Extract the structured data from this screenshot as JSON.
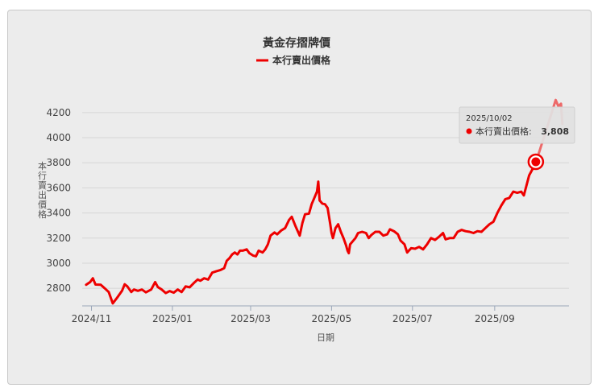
{
  "chart_data": {
    "type": "line",
    "title": "黃金存摺牌價",
    "legend": [
      "本行賣出價格"
    ],
    "xlabel": "日期",
    "ylabel": "本行賣出價格",
    "legend_position": "top-center",
    "grid": true,
    "ylim": [
      2660,
      4340
    ],
    "yticks": [
      2800,
      3000,
      3200,
      3400,
      3600,
      3800,
      4000,
      4200
    ],
    "xlim": [
      "2024-10-25",
      "2025-10-27"
    ],
    "xticks": [
      {
        "date": "2024-11-01",
        "label": "2024/11"
      },
      {
        "date": "2025-01-01",
        "label": "2025/01"
      },
      {
        "date": "2025-03-01",
        "label": "2025/03"
      },
      {
        "date": "2025-05-01",
        "label": "2025/05"
      },
      {
        "date": "2025-07-01",
        "label": "2025/07"
      },
      {
        "date": "2025-09-01",
        "label": "2025/09"
      }
    ],
    "series": [
      {
        "name": "本行賣出價格",
        "color": "#ee0000",
        "points": [
          [
            "2024-10-28",
            2828
          ],
          [
            "2024-10-31",
            2850
          ],
          [
            "2024-11-02",
            2880
          ],
          [
            "2024-11-04",
            2830
          ],
          [
            "2024-11-08",
            2828
          ],
          [
            "2024-11-11",
            2800
          ],
          [
            "2024-11-14",
            2770
          ],
          [
            "2024-11-17",
            2680
          ],
          [
            "2024-11-20",
            2720
          ],
          [
            "2024-11-24",
            2780
          ],
          [
            "2024-11-26",
            2832
          ],
          [
            "2024-11-28",
            2815
          ],
          [
            "2024-12-01",
            2770
          ],
          [
            "2024-12-03",
            2790
          ],
          [
            "2024-12-06",
            2780
          ],
          [
            "2024-12-09",
            2790
          ],
          [
            "2024-12-12",
            2768
          ],
          [
            "2024-12-16",
            2790
          ],
          [
            "2024-12-19",
            2850
          ],
          [
            "2024-12-21",
            2810
          ],
          [
            "2024-12-24",
            2790
          ],
          [
            "2024-12-27",
            2762
          ],
          [
            "2024-12-30",
            2778
          ],
          [
            "2025-01-02",
            2765
          ],
          [
            "2025-01-05",
            2790
          ],
          [
            "2025-01-08",
            2770
          ],
          [
            "2025-01-11",
            2815
          ],
          [
            "2025-01-14",
            2808
          ],
          [
            "2025-01-17",
            2840
          ],
          [
            "2025-01-20",
            2870
          ],
          [
            "2025-01-22",
            2860
          ],
          [
            "2025-01-25",
            2880
          ],
          [
            "2025-01-28",
            2870
          ],
          [
            "2025-01-31",
            2925
          ],
          [
            "2025-02-03",
            2935
          ],
          [
            "2025-02-06",
            2945
          ],
          [
            "2025-02-09",
            2960
          ],
          [
            "2025-02-11",
            3020
          ],
          [
            "2025-02-13",
            3040
          ],
          [
            "2025-02-15",
            3070
          ],
          [
            "2025-02-17",
            3085
          ],
          [
            "2025-02-19",
            3070
          ],
          [
            "2025-02-21",
            3100
          ],
          [
            "2025-02-23",
            3100
          ],
          [
            "2025-02-26",
            3110
          ],
          [
            "2025-02-28",
            3080
          ],
          [
            "2025-03-03",
            3060
          ],
          [
            "2025-03-05",
            3055
          ],
          [
            "2025-03-07",
            3100
          ],
          [
            "2025-03-10",
            3085
          ],
          [
            "2025-03-12",
            3110
          ],
          [
            "2025-03-14",
            3150
          ],
          [
            "2025-03-16",
            3220
          ],
          [
            "2025-03-19",
            3245
          ],
          [
            "2025-03-21",
            3230
          ],
          [
            "2025-03-24",
            3260
          ],
          [
            "2025-03-27",
            3280
          ],
          [
            "2025-03-30",
            3345
          ],
          [
            "2025-04-01",
            3370
          ],
          [
            "2025-04-04",
            3290
          ],
          [
            "2025-04-07",
            3220
          ],
          [
            "2025-04-09",
            3320
          ],
          [
            "2025-04-11",
            3390
          ],
          [
            "2025-04-14",
            3395
          ],
          [
            "2025-04-16",
            3470
          ],
          [
            "2025-04-18",
            3520
          ],
          [
            "2025-04-20",
            3570
          ],
          [
            "2025-04-21",
            3650
          ],
          [
            "2025-04-22",
            3500
          ],
          [
            "2025-04-24",
            3475
          ],
          [
            "2025-04-26",
            3470
          ],
          [
            "2025-04-28",
            3440
          ],
          [
            "2025-04-30",
            3310
          ],
          [
            "2025-05-01",
            3240
          ],
          [
            "2025-05-02",
            3200
          ],
          [
            "2025-05-04",
            3280
          ],
          [
            "2025-05-06",
            3310
          ],
          [
            "2025-05-08",
            3250
          ],
          [
            "2025-05-10",
            3200
          ],
          [
            "2025-05-12",
            3140
          ],
          [
            "2025-05-13",
            3100
          ],
          [
            "2025-05-14",
            3080
          ],
          [
            "2025-05-15",
            3150
          ],
          [
            "2025-05-17",
            3175
          ],
          [
            "2025-05-19",
            3200
          ],
          [
            "2025-05-21",
            3240
          ],
          [
            "2025-05-24",
            3250
          ],
          [
            "2025-05-27",
            3240
          ],
          [
            "2025-05-29",
            3200
          ],
          [
            "2025-05-31",
            3225
          ],
          [
            "2025-06-03",
            3250
          ],
          [
            "2025-06-06",
            3250
          ],
          [
            "2025-06-09",
            3220
          ],
          [
            "2025-06-12",
            3230
          ],
          [
            "2025-06-14",
            3270
          ],
          [
            "2025-06-17",
            3255
          ],
          [
            "2025-06-20",
            3230
          ],
          [
            "2025-06-22",
            3180
          ],
          [
            "2025-06-25",
            3150
          ],
          [
            "2025-06-27",
            3085
          ],
          [
            "2025-06-30",
            3120
          ],
          [
            "2025-07-03",
            3115
          ],
          [
            "2025-07-06",
            3130
          ],
          [
            "2025-07-09",
            3110
          ],
          [
            "2025-07-12",
            3150
          ],
          [
            "2025-07-15",
            3200
          ],
          [
            "2025-07-18",
            3185
          ],
          [
            "2025-07-21",
            3210
          ],
          [
            "2025-07-24",
            3240
          ],
          [
            "2025-07-26",
            3190
          ],
          [
            "2025-07-29",
            3200
          ],
          [
            "2025-08-01",
            3200
          ],
          [
            "2025-08-04",
            3250
          ],
          [
            "2025-08-07",
            3265
          ],
          [
            "2025-08-10",
            3255
          ],
          [
            "2025-08-13",
            3250
          ],
          [
            "2025-08-16",
            3240
          ],
          [
            "2025-08-19",
            3255
          ],
          [
            "2025-08-22",
            3250
          ],
          [
            "2025-08-25",
            3280
          ],
          [
            "2025-08-28",
            3310
          ],
          [
            "2025-08-31",
            3330
          ],
          [
            "2025-09-03",
            3400
          ],
          [
            "2025-09-06",
            3460
          ],
          [
            "2025-09-09",
            3510
          ],
          [
            "2025-09-12",
            3520
          ],
          [
            "2025-09-15",
            3570
          ],
          [
            "2025-09-18",
            3560
          ],
          [
            "2025-09-21",
            3570
          ],
          [
            "2025-09-23",
            3540
          ],
          [
            "2025-09-25",
            3620
          ],
          [
            "2025-09-27",
            3700
          ],
          [
            "2025-09-30",
            3760
          ],
          [
            "2025-10-02",
            3808
          ],
          [
            "2025-10-05",
            3900
          ],
          [
            "2025-10-08",
            4000
          ],
          [
            "2025-10-11",
            4100
          ],
          [
            "2025-10-14",
            4200
          ],
          [
            "2025-10-17",
            4300
          ],
          [
            "2025-10-19",
            4250
          ],
          [
            "2025-10-21",
            4270
          ],
          [
            "2025-10-22",
            4110
          ]
        ]
      }
    ],
    "tooltip": {
      "date": "2025/10/02",
      "label": "本行賣出價格:",
      "value": "3,808",
      "highlight_date": "2025-10-02",
      "highlight_value": 3808
    }
  }
}
